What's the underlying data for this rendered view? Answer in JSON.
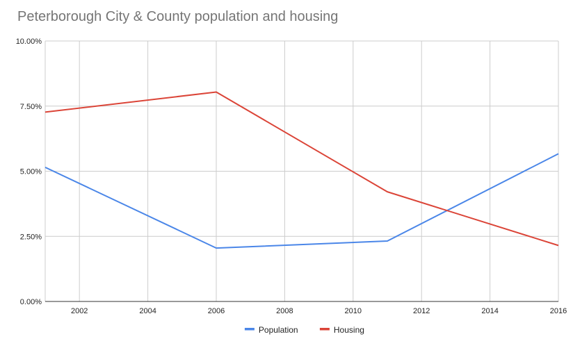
{
  "chart_data": {
    "type": "line",
    "title": "Peterborough City & County population and housing",
    "xlabel": "",
    "ylabel": "",
    "xlim": [
      2001,
      2016
    ],
    "ylim": [
      0,
      0.1
    ],
    "x_ticks": [
      2002,
      2004,
      2006,
      2008,
      2010,
      2012,
      2014,
      2016
    ],
    "y_ticks": [
      {
        "value": 0.0,
        "label": "0.00%"
      },
      {
        "value": 0.025,
        "label": "2.50%"
      },
      {
        "value": 0.05,
        "label": "5.00%"
      },
      {
        "value": 0.075,
        "label": "7.50%"
      },
      {
        "value": 0.1,
        "label": "10.00%"
      }
    ],
    "grid": true,
    "legend_position": "bottom",
    "series": [
      {
        "name": "Population",
        "color": "#4a86e8",
        "x": [
          2001,
          2006,
          2011,
          2016
        ],
        "y": [
          0.0515,
          0.0205,
          0.0232,
          0.0567
        ]
      },
      {
        "name": "Housing",
        "color": "#db4437",
        "x": [
          2001,
          2006,
          2011,
          2016
        ],
        "y": [
          0.0727,
          0.0804,
          0.0421,
          0.0215
        ]
      }
    ]
  },
  "colors": {
    "grid": "#cccccc",
    "axis": "#333333",
    "title": "#757575",
    "tick_label": "#222222"
  }
}
